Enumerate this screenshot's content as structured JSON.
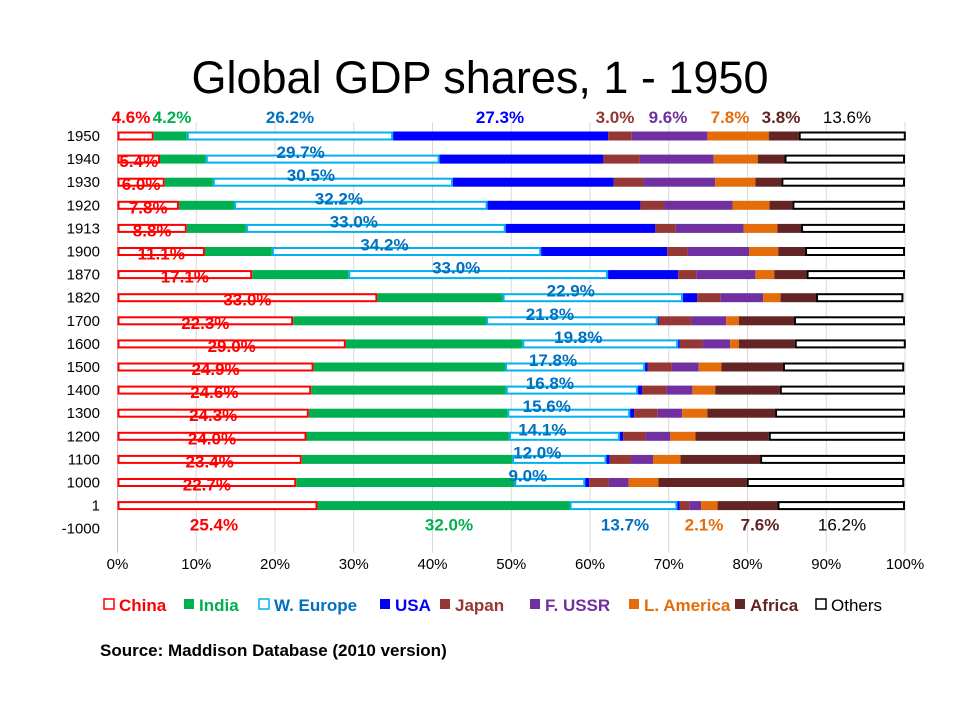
{
  "chart_data": {
    "type": "bar",
    "orientation": "horizontal",
    "stacked": "percent",
    "title": "Global GDP shares, 1 - 1950",
    "source": "Source:  Maddison  Database  (2010 version)",
    "xlim": [
      0,
      100
    ],
    "x_ticks": [
      "0%",
      "10%",
      "20%",
      "30%",
      "40%",
      "50%",
      "60%",
      "70%",
      "80%",
      "90%",
      "100%"
    ],
    "grid": "vertical",
    "legend_position": "bottom",
    "categories": [
      "1950",
      "1940",
      "1930",
      "1920",
      "1913",
      "1900",
      "1870",
      "1820",
      "1700",
      "1600",
      "1500",
      "1400",
      "1300",
      "1200",
      "1100",
      "1000",
      "1",
      "-1000"
    ],
    "series": [
      {
        "name": "China",
        "fill": "#FFFFFF",
        "stroke": "#FF0000",
        "label_color": "#FF0000",
        "values": [
          4.6,
          5.4,
          6.0,
          7.8,
          8.8,
          11.1,
          17.1,
          33.0,
          22.3,
          29.0,
          24.9,
          24.6,
          24.3,
          24.0,
          23.4,
          22.7,
          25.4,
          null
        ]
      },
      {
        "name": "India",
        "fill": "#00B050",
        "stroke": "#00B050",
        "label_color": "#00B050",
        "values": [
          4.2,
          5.8,
          6.1,
          7.0,
          7.5,
          8.5,
          12.2,
          15.9,
          24.5,
          22.4,
          24.3,
          24.7,
          25.2,
          25.7,
          26.7,
          27.7,
          32.0,
          null
        ]
      },
      {
        "name": "W. Europe",
        "fill": "#FFFFFF",
        "stroke": "#00B0F0",
        "label_color": "#0070C0",
        "values": [
          26.2,
          29.7,
          30.5,
          32.2,
          33.0,
          34.2,
          33.0,
          22.9,
          21.8,
          19.8,
          17.8,
          16.8,
          15.6,
          14.1,
          12.0,
          9.0,
          13.7,
          null
        ]
      },
      {
        "name": "USA",
        "fill": "#0000FF",
        "stroke": "#0000FF",
        "label_color": "#0000FF",
        "values": [
          27.3,
          20.8,
          20.4,
          19.4,
          19.0,
          16.0,
          8.9,
          1.8,
          0.1,
          0.2,
          0.3,
          0.5,
          0.5,
          0.4,
          0.4,
          0.5,
          0.3,
          null
        ]
      },
      {
        "name": "Japan",
        "fill": "#953735",
        "stroke": "#953735",
        "label_color": "#953735",
        "values": [
          3.0,
          4.6,
          3.8,
          3.0,
          2.6,
          2.6,
          2.3,
          3.0,
          4.2,
          2.9,
          3.1,
          3.1,
          3.0,
          2.9,
          2.7,
          2.5,
          1.2,
          null
        ]
      },
      {
        "name": "F. USSR",
        "fill": "#7030A0",
        "stroke": "#7030A0",
        "label_color": "#7030A0",
        "values": [
          9.6,
          9.4,
          9.1,
          8.7,
          8.6,
          7.8,
          7.5,
          5.4,
          4.4,
          3.5,
          3.4,
          3.3,
          3.1,
          3.1,
          2.8,
          2.5,
          1.5,
          null
        ]
      },
      {
        "name": "L. America",
        "fill": "#E46C0A",
        "stroke": "#E46C0A",
        "label_color": "#E46C0A",
        "values": [
          7.8,
          5.6,
          5.1,
          4.7,
          4.3,
          3.7,
          2.4,
          2.2,
          1.6,
          1.1,
          2.9,
          2.9,
          3.2,
          3.2,
          3.5,
          3.8,
          2.1,
          null
        ]
      },
      {
        "name": "Africa",
        "fill": "#632523",
        "stroke": "#632523",
        "label_color": "#632523",
        "values": [
          3.8,
          3.4,
          3.3,
          2.9,
          3.0,
          3.4,
          4.1,
          4.5,
          7.0,
          7.1,
          7.8,
          8.2,
          8.6,
          9.3,
          10.1,
          11.2,
          7.6,
          null
        ]
      },
      {
        "name": "Others",
        "fill": "#FFFFFF",
        "stroke": "#000000",
        "label_color": "#000000",
        "values": [
          13.6,
          15.3,
          15.7,
          14.3,
          13.2,
          12.7,
          12.5,
          11.1,
          14.1,
          14.1,
          15.4,
          15.9,
          16.5,
          17.3,
          18.4,
          20.0,
          16.2,
          null
        ]
      }
    ],
    "data_labels": [
      {
        "category": "1950",
        "series": "China",
        "text": "4.6%"
      },
      {
        "category": "1950",
        "series": "India",
        "text": "4.2%"
      },
      {
        "category": "1950",
        "series": "W. Europe",
        "text": "26.2%"
      },
      {
        "category": "1950",
        "series": "USA",
        "text": "27.3%"
      },
      {
        "category": "1950",
        "series": "Japan",
        "text": "3.0%"
      },
      {
        "category": "1950",
        "series": "F. USSR",
        "text": "9.6%"
      },
      {
        "category": "1950",
        "series": "L. America",
        "text": "7.8%"
      },
      {
        "category": "1950",
        "series": "Africa",
        "text": "3.8%"
      },
      {
        "category": "1950",
        "series": "Others",
        "text": "13.6%"
      },
      {
        "category": "1940",
        "series": "China",
        "text": "5.4%"
      },
      {
        "category": "1940",
        "series": "W. Europe",
        "text": "29.7%"
      },
      {
        "category": "1930",
        "series": "China",
        "text": "6.0%"
      },
      {
        "category": "1930",
        "series": "W. Europe",
        "text": "30.5%"
      },
      {
        "category": "1920",
        "series": "China",
        "text": "7.8%"
      },
      {
        "category": "1920",
        "series": "W. Europe",
        "text": "32.2%"
      },
      {
        "category": "1913",
        "series": "China",
        "text": "8.8%"
      },
      {
        "category": "1913",
        "series": "W. Europe",
        "text": "33.0%"
      },
      {
        "category": "1900",
        "series": "China",
        "text": "11.1%"
      },
      {
        "category": "1900",
        "series": "W. Europe",
        "text": "34.2%"
      },
      {
        "category": "1870",
        "series": "China",
        "text": "17.1%"
      },
      {
        "category": "1870",
        "series": "W. Europe",
        "text": "33.0%"
      },
      {
        "category": "1820",
        "series": "China",
        "text": "33.0%"
      },
      {
        "category": "1820",
        "series": "W. Europe",
        "text": "22.9%"
      },
      {
        "category": "1700",
        "series": "China",
        "text": "22.3%"
      },
      {
        "category": "1700",
        "series": "W. Europe",
        "text": "21.8%"
      },
      {
        "category": "1600",
        "series": "China",
        "text": "29.0%"
      },
      {
        "category": "1600",
        "series": "W. Europe",
        "text": "19.8%"
      },
      {
        "category": "1500",
        "series": "China",
        "text": "24.9%"
      },
      {
        "category": "1500",
        "series": "W. Europe",
        "text": "17.8%"
      },
      {
        "category": "1400",
        "series": "China",
        "text": "24.6%"
      },
      {
        "category": "1400",
        "series": "W. Europe",
        "text": "16.8%"
      },
      {
        "category": "1300",
        "series": "China",
        "text": "24.3%"
      },
      {
        "category": "1300",
        "series": "W. Europe",
        "text": "15.6%"
      },
      {
        "category": "1200",
        "series": "China",
        "text": "24.0%"
      },
      {
        "category": "1200",
        "series": "W. Europe",
        "text": "14.1%"
      },
      {
        "category": "1100",
        "series": "China",
        "text": "23.4%"
      },
      {
        "category": "1100",
        "series": "W. Europe",
        "text": "12.0%"
      },
      {
        "category": "1000",
        "series": "China",
        "text": "22.7%"
      },
      {
        "category": "1000",
        "series": "W. Europe",
        "text": "9.0%"
      },
      {
        "category": "1",
        "series": "China",
        "text": "25.4%"
      },
      {
        "category": "1",
        "series": "India",
        "text": "32.0%"
      },
      {
        "category": "1",
        "series": "W. Europe",
        "text": "13.7%"
      },
      {
        "category": "1",
        "series": "L. America",
        "text": "2.1%"
      },
      {
        "category": "1",
        "series": "Africa",
        "text": "7.6%"
      },
      {
        "category": "1",
        "series": "Others",
        "text": "16.2%"
      }
    ]
  }
}
